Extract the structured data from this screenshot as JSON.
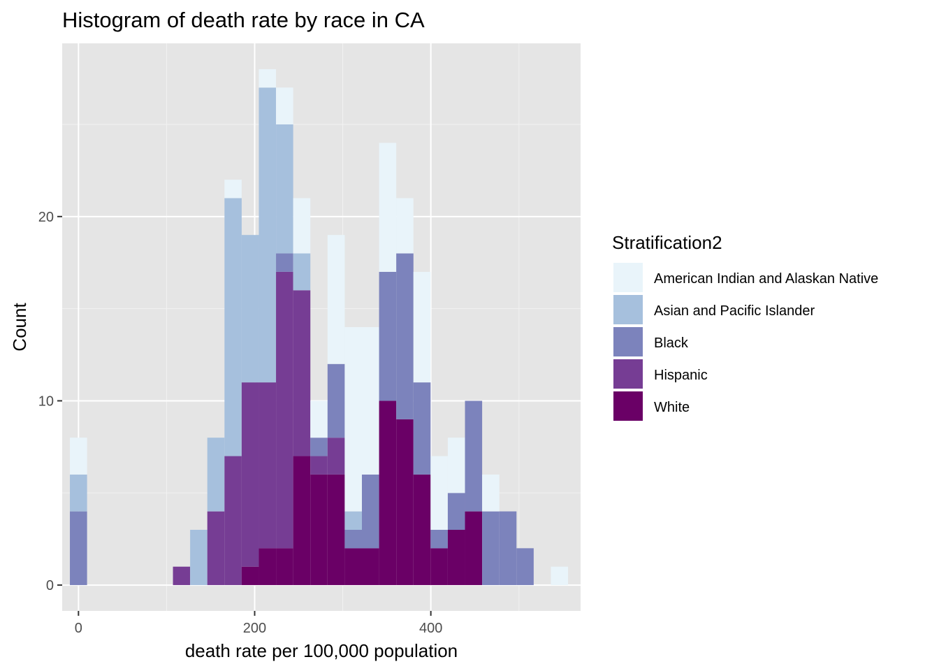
{
  "chart_data": {
    "type": "bar",
    "stacked": true,
    "title": "Histogram of death rate by race in CA",
    "xlabel": "death rate per 100,000 population",
    "ylabel": "Count",
    "xlim": [
      -18.5,
      570
    ],
    "ylim": [
      -1.4,
      29.4
    ],
    "x_ticks": [
      0,
      200,
      400
    ],
    "x_tick_labels": [
      "0",
      "200",
      "400"
    ],
    "y_ticks": [
      0,
      10,
      20
    ],
    "y_tick_labels": [
      "0",
      "10",
      "20"
    ],
    "grid": true,
    "legend": {
      "title": "Stratification2",
      "position": "right"
    },
    "bin_width": 19.5,
    "bin_centers": [
      0,
      117,
      136.5,
      156,
      175.5,
      195,
      214.5,
      234,
      253.5,
      273,
      292.5,
      312,
      331.5,
      351,
      370.5,
      390,
      409.5,
      429,
      448.5,
      468,
      487.5,
      507,
      546
    ],
    "series": [
      {
        "name": "White",
        "color": "#6a0066",
        "values": [
          0,
          0,
          0,
          0,
          0,
          1,
          2,
          2,
          7,
          6,
          6,
          2,
          2,
          10,
          9,
          6,
          2,
          3,
          4,
          0,
          0,
          0,
          0
        ]
      },
      {
        "name": "Hispanic",
        "color": "#763d94",
        "values": [
          0,
          1,
          0,
          4,
          7,
          10,
          9,
          15,
          9,
          1,
          2,
          0,
          0,
          0,
          0,
          0,
          0,
          0,
          0,
          0,
          0,
          0,
          0
        ]
      },
      {
        "name": "Black",
        "color": "#7c83bc",
        "values": [
          4,
          0,
          0,
          0,
          0,
          0,
          0,
          1,
          0,
          1,
          4,
          1,
          4,
          7,
          9,
          5,
          1,
          2,
          6,
          4,
          4,
          2,
          0
        ]
      },
      {
        "name": "Asian and Pacific Islander",
        "color": "#a6c0dd",
        "values": [
          2,
          0,
          3,
          4,
          14,
          8,
          16,
          7,
          2,
          0,
          0,
          1,
          0,
          0,
          0,
          0,
          0,
          0,
          0,
          0,
          0,
          0,
          0
        ]
      },
      {
        "name": "American Indian and Alaskan Native",
        "color": "#e9f4fa",
        "values": [
          2,
          0,
          0,
          0,
          1,
          0,
          1,
          2,
          3,
          2,
          7,
          10,
          8,
          7,
          3,
          6,
          4,
          3,
          0,
          2,
          0,
          0,
          1
        ]
      }
    ],
    "legend_order": [
      "American Indian and Alaskan Native",
      "Asian and Pacific Islander",
      "Black",
      "Hispanic",
      "White"
    ]
  }
}
